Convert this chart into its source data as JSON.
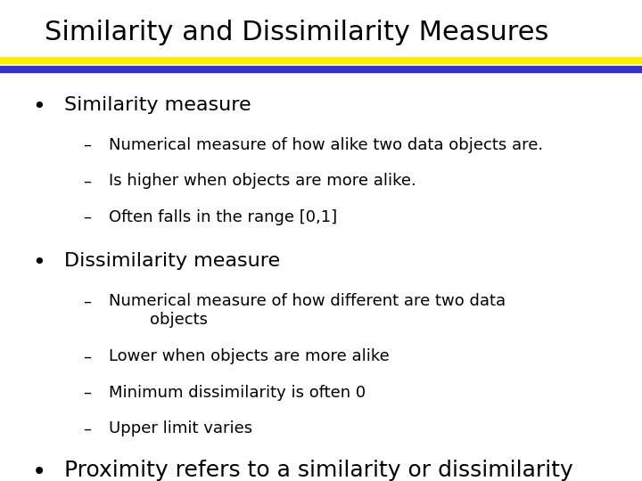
{
  "title": "Similarity and Dissimilarity Measures",
  "title_fontsize": 22,
  "title_color": "#000000",
  "slide_bg": "#ffffff",
  "bar_blue": "#3333cc",
  "bar_yellow": "#ffee00",
  "bullet1_header": "Similarity measure",
  "bullet1_items": [
    "Numerical measure of how alike two data objects are.",
    "Is higher when objects are more alike.",
    "Often falls in the range [0,1]"
  ],
  "bullet2_header": "Dissimilarity measure",
  "bullet2_items": [
    "Numerical measure of how different are two data\n        objects",
    "Lower when objects are more alike",
    "Minimum dissimilarity is often 0",
    "Upper limit varies"
  ],
  "bullet3_text": "Proximity refers to a similarity or dissimilarity",
  "header_fontsize": 16,
  "sub_fontsize": 13,
  "bullet3_fontsize": 18,
  "text_color": "#000000"
}
